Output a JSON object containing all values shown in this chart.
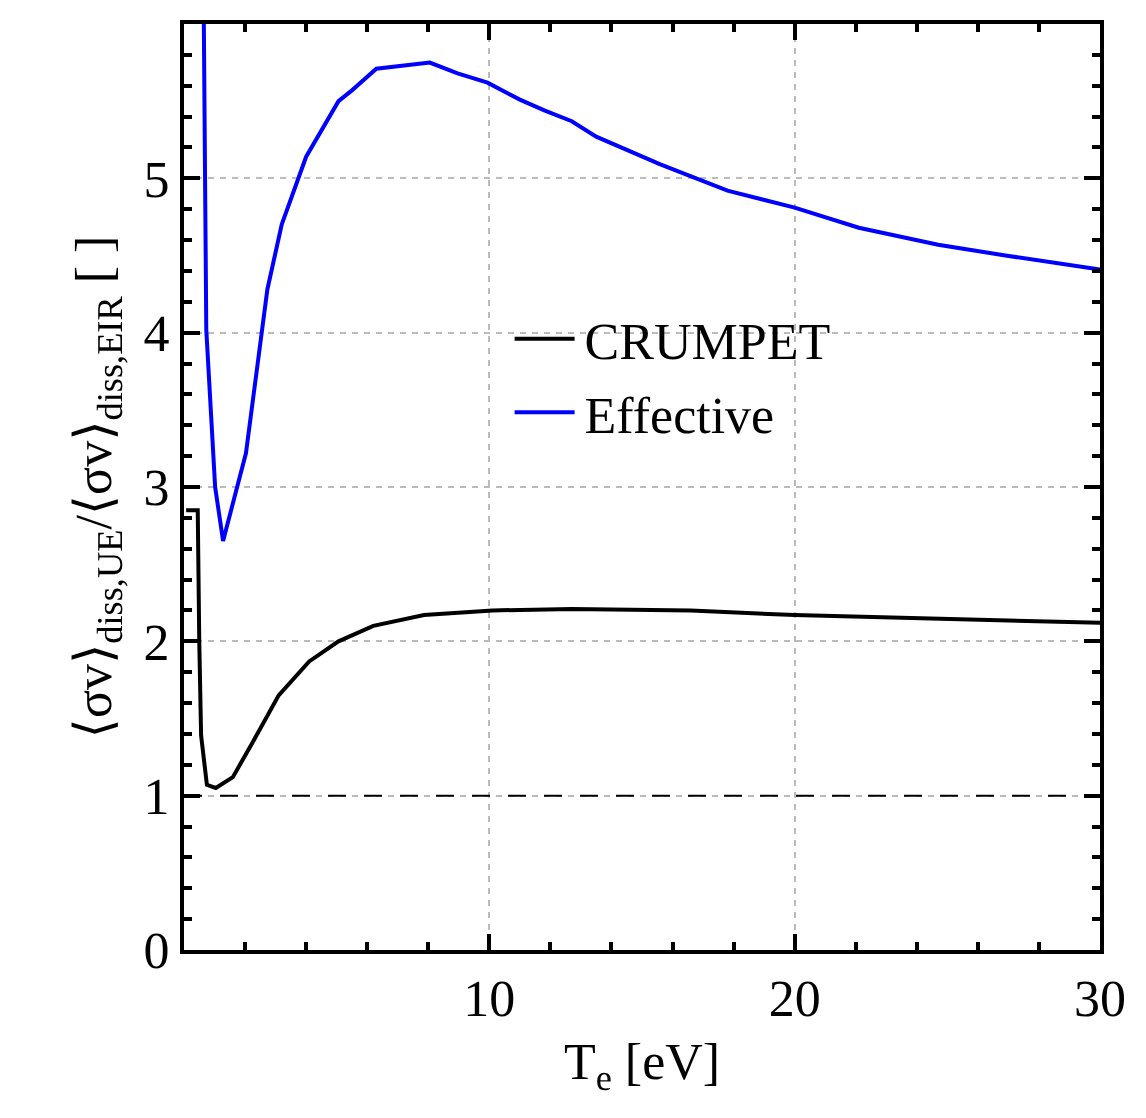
{
  "chart_data": {
    "type": "line",
    "xlabel": "T$_{e}$ [eV]",
    "ylabel": "⟨σv⟩$_{diss,UE}$/⟨σv⟩$_{diss,EIR}$ [ ]",
    "series": [
      {
        "name": "CRUMPET",
        "color": "#000000",
        "x": [
          0.07,
          0.45,
          0.5,
          0.56,
          0.75,
          1.04,
          1.6,
          2.26,
          3.1,
          4.1,
          5.06,
          6.2,
          7.86,
          10.1,
          12.7,
          16.6,
          20,
          30
        ],
        "values": [
          2.85,
          2.85,
          2.0,
          1.39,
          1.07,
          1.05,
          1.12,
          1.35,
          1.65,
          1.87,
          2.0,
          2.1,
          2.17,
          2.2,
          2.21,
          2.2,
          2.17,
          2.12
        ]
      },
      {
        "name": "Effective",
        "color": "#0000ff",
        "x": [
          0.65,
          0.73,
          1.02,
          1.28,
          2.03,
          2.73,
          3.2,
          4.0,
          5.06,
          5.5,
          6.3,
          8.05,
          8.96,
          9.94,
          11.0,
          11.8,
          12.7,
          13.5,
          15.6,
          17.8,
          20.0,
          22.1,
          24.7,
          26.9,
          30
        ],
        "values": [
          6.0,
          4.02,
          3.0,
          2.65,
          3.22,
          4.28,
          4.7,
          5.14,
          5.5,
          5.57,
          5.71,
          5.75,
          5.68,
          5.62,
          5.51,
          5.44,
          5.37,
          5.27,
          5.09,
          4.92,
          4.81,
          4.68,
          4.57,
          4.5,
          4.41
        ]
      }
    ],
    "xlim": [
      0,
      30
    ],
    "xticks": [
      {
        "value": 0,
        "label": null
      },
      10,
      20,
      30
    ],
    "ylim": [
      0,
      6
    ],
    "yticks": [
      0,
      1,
      2,
      3,
      4,
      5
    ],
    "ref_lines": [
      {
        "axis": "y",
        "value": 1,
        "color": "#000000",
        "line_style": "dashed"
      }
    ],
    "grid": true,
    "legend": "center",
    "marker": "none",
    "line_style": "solid"
  }
}
